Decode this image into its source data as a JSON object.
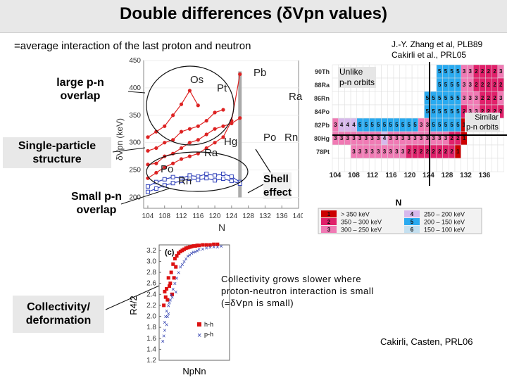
{
  "slide": {
    "title": "Double differences (δVpn values)",
    "subtitle": "=average interaction of the last proton and neutron",
    "refs": {
      "line1": "J.-Y. Zhang et al, PLB89",
      "line2": "Cakirli et al., PRL05",
      "bottom": "Cakirli, Casten, PRL06"
    },
    "labels": {
      "large_overlap_1": "large p-n",
      "large_overlap_2": "overlap",
      "single_particle_1": "Single-particle",
      "single_particle_2": "structure",
      "small_overlap_1": "Small p-n",
      "small_overlap_2": "overlap",
      "collectivity_1": "Collectivity/",
      "collectivity_2": "deformation",
      "unlike_1": "Unlike",
      "unlike_2": "p-n orbits",
      "similar_1": "Similar",
      "similar_2": "p-n orbits",
      "shell_1": "Shell",
      "shell_2": "effect",
      "coll_text_1": "Collectivity grows slower where",
      "coll_text_2": "proton-neutron interaction is small",
      "coll_text_3": "(=δVpn is small)"
    }
  },
  "chart_data": [
    {
      "type": "line",
      "title": "",
      "xlabel": "N",
      "ylabel": "δVpn (keV)",
      "xlim": [
        103,
        140
      ],
      "ylim": [
        180,
        450
      ],
      "x_ticks": [
        104,
        108,
        112,
        116,
        120,
        124,
        128,
        132,
        136,
        140
      ],
      "y_ticks": [
        200,
        250,
        300,
        350,
        400,
        450
      ],
      "series": [
        {
          "name": "Os",
          "color": "#dd2222",
          "points": [
            [
              104,
              310
            ],
            [
              106,
              320
            ],
            [
              108,
              330
            ],
            [
              110,
              350
            ],
            [
              112,
              370
            ],
            [
              114,
              395
            ],
            [
              116,
              368
            ]
          ]
        },
        {
          "name": "Pt",
          "color": "#dd2222",
          "points": [
            [
              104,
              285
            ],
            [
              106,
              290
            ],
            [
              108,
              300
            ],
            [
              110,
              305
            ],
            [
              112,
              320
            ],
            [
              114,
              325
            ],
            [
              116,
              330
            ],
            [
              118,
              340
            ],
            [
              120,
              355
            ],
            [
              122,
              360
            ]
          ]
        },
        {
          "name": "Hg",
          "color": "#dd2222",
          "points": [
            [
              104,
              260
            ],
            [
              106,
              262
            ],
            [
              108,
              275
            ],
            [
              110,
              280
            ],
            [
              112,
              290
            ],
            [
              114,
              300
            ],
            [
              116,
              305
            ],
            [
              118,
              315
            ],
            [
              120,
              325
            ],
            [
              122,
              330
            ],
            [
              124,
              335
            ],
            [
              126,
              345
            ]
          ]
        },
        {
          "name": "Pb",
          "color": "#dd2222",
          "points": [
            [
              104,
              235
            ],
            [
              106,
              245
            ],
            [
              108,
              255
            ],
            [
              110,
              262
            ],
            [
              112,
              270
            ],
            [
              114,
              275
            ],
            [
              116,
              280
            ],
            [
              118,
              290
            ],
            [
              120,
              300
            ],
            [
              122,
              310
            ],
            [
              124,
              340
            ],
            [
              126,
              425
            ]
          ]
        },
        {
          "name": "Po",
          "color": "#3344bb",
          "points": [
            [
              104,
              220
            ],
            [
              106,
              228
            ],
            [
              108,
              233
            ],
            [
              110,
              237
            ],
            [
              112,
              235
            ],
            [
              114,
              240
            ],
            [
              116,
              238
            ],
            [
              118,
              243
            ],
            [
              120,
              240
            ],
            [
              122,
              243
            ],
            [
              124,
              238
            ],
            [
              126,
              228
            ]
          ]
        },
        {
          "name": "Rn",
          "color": "#3344bb",
          "points": [
            [
              104,
              210
            ],
            [
              106,
              216
            ],
            [
              108,
              222
            ],
            [
              110,
              226
            ],
            [
              112,
              230
            ],
            [
              114,
              234
            ],
            [
              116,
              232
            ],
            [
              118,
              235
            ],
            [
              120,
              231
            ],
            [
              122,
              234
            ],
            [
              124,
              230
            ],
            [
              126,
              225
            ]
          ]
        }
      ],
      "element_labels": [
        "Os",
        "Pt",
        "Pb",
        "Ra",
        "Hg",
        "Po",
        "Rn",
        "Ra",
        "Rn",
        "Po"
      ]
    },
    {
      "type": "heatmap",
      "title": "",
      "xlabel": "N",
      "x_ticks": [
        104,
        108,
        112,
        116,
        120,
        124,
        128,
        132,
        136
      ],
      "rows": [
        {
          "label": "90Th",
          "values": [
            null,
            null,
            null,
            null,
            null,
            null,
            null,
            null,
            null,
            null,
            null,
            null,
            null,
            null,
            null,
            null,
            null,
            5,
            5,
            5,
            5,
            3,
            3,
            2,
            2,
            2,
            2,
            3
          ]
        },
        {
          "label": "88Ra",
          "values": [
            null,
            null,
            null,
            null,
            null,
            null,
            null,
            null,
            null,
            null,
            null,
            null,
            null,
            null,
            null,
            null,
            null,
            5,
            5,
            5,
            5,
            3,
            3,
            2,
            2,
            2,
            2,
            2
          ]
        },
        {
          "label": "86Rn",
          "values": [
            null,
            null,
            null,
            null,
            null,
            null,
            null,
            null,
            null,
            null,
            null,
            null,
            null,
            null,
            null,
            5,
            5,
            5,
            5,
            5,
            5,
            3,
            3,
            3,
            2,
            2,
            2,
            3
          ]
        },
        {
          "label": "84Po",
          "values": [
            null,
            null,
            null,
            null,
            null,
            null,
            null,
            null,
            null,
            null,
            null,
            null,
            null,
            null,
            null,
            5,
            5,
            5,
            5,
            5,
            5,
            2,
            3,
            3,
            2,
            2,
            2,
            2
          ]
        },
        {
          "label": "82Pb",
          "values": [
            3,
            4,
            4,
            4,
            5,
            5,
            5,
            5,
            5,
            5,
            5,
            5,
            5,
            5,
            3,
            3,
            5,
            5,
            5,
            5,
            5,
            1,
            3,
            null,
            null,
            null,
            null,
            null
          ]
        },
        {
          "label": "80Hg",
          "values": [
            3,
            3,
            3,
            3,
            3,
            3,
            3,
            3,
            4,
            3,
            3,
            3,
            3,
            3,
            3,
            3,
            3,
            3,
            3,
            2,
            2,
            1,
            null,
            null,
            null,
            null,
            null,
            null
          ]
        },
        {
          "label": "78Pt",
          "values": [
            null,
            null,
            null,
            3,
            3,
            3,
            3,
            3,
            3,
            3,
            3,
            3,
            2,
            2,
            2,
            2,
            2,
            2,
            2,
            2,
            1,
            null,
            null,
            null,
            null,
            null,
            null,
            null
          ]
        },
        {
          "label": "",
          "values": [
            null,
            null,
            null,
            null,
            null,
            null,
            null,
            null,
            null,
            null,
            null,
            null,
            null,
            null,
            null,
            null,
            null,
            null,
            null,
            null,
            null,
            null,
            null,
            null,
            null,
            null,
            null,
            null
          ]
        }
      ],
      "legend": [
        {
          "key": "1",
          "range": "> 350 keV",
          "color": "#cc0000"
        },
        {
          "key": "2",
          "range": "350 – 300 keV",
          "color": "#e0206a"
        },
        {
          "key": "3",
          "range": "300 – 250 keV",
          "color": "#f07ab4"
        },
        {
          "key": "4",
          "range": "250 – 200 keV",
          "color": "#d7b8ec"
        },
        {
          "key": "5",
          "range": "200 – 150 keV",
          "color": "#29aaf0"
        },
        {
          "key": "6",
          "range": "150 – 100 keV",
          "color": "#c4e0f0"
        }
      ]
    },
    {
      "type": "scatter",
      "title": "(c)",
      "xlabel": "NpNn",
      "ylabel": "R4/2",
      "ylim": [
        1.2,
        3.3
      ],
      "y_ticks": [
        1.2,
        1.4,
        1.6,
        1.8,
        2.0,
        2.2,
        2.4,
        2.6,
        2.8,
        3.0,
        3.2
      ],
      "series": [
        {
          "name": "h-h",
          "marker": "square",
          "color": "#dd1111",
          "points": [
            [
              2,
              2.2
            ],
            [
              4,
              2.35
            ],
            [
              5,
              2.5
            ],
            [
              7,
              2.7
            ],
            [
              8,
              2.55
            ],
            [
              10,
              2.8
            ],
            [
              12,
              2.95
            ],
            [
              14,
              3.05
            ],
            [
              16,
              3.1
            ],
            [
              18,
              3.15
            ],
            [
              20,
              3.18
            ],
            [
              22,
              3.2
            ],
            [
              24,
              3.22
            ],
            [
              26,
              3.24
            ],
            [
              28,
              3.25
            ],
            [
              30,
              3.26
            ],
            [
              32,
              3.27
            ],
            [
              34,
              3.28
            ],
            [
              36,
              3.28
            ],
            [
              38,
              3.29
            ],
            [
              40,
              3.29
            ],
            [
              44,
              3.3
            ],
            [
              48,
              3.3
            ],
            [
              52,
              3.3
            ],
            [
              56,
              3.31
            ],
            [
              60,
              3.31
            ],
            [
              6,
              2.3
            ],
            [
              9,
              2.6
            ],
            [
              11,
              2.4
            ],
            [
              13,
              2.7
            ],
            [
              3,
              2.45
            ],
            [
              15,
              2.9
            ]
          ]
        },
        {
          "name": "p-h",
          "marker": "x",
          "color": "#2233aa",
          "points": [
            [
              1,
              1.55
            ],
            [
              2,
              1.65
            ],
            [
              3,
              1.75
            ],
            [
              4,
              2.0
            ],
            [
              5,
              2.1
            ],
            [
              6,
              2.0
            ],
            [
              7,
              2.2
            ],
            [
              8,
              2.25
            ],
            [
              9,
              2.3
            ],
            [
              10,
              2.4
            ],
            [
              12,
              2.5
            ],
            [
              14,
              2.6
            ],
            [
              16,
              2.7
            ],
            [
              18,
              2.8
            ],
            [
              20,
              2.9
            ],
            [
              22,
              2.95
            ],
            [
              24,
              3.0
            ],
            [
              26,
              3.05
            ],
            [
              28,
              3.1
            ],
            [
              30,
              3.12
            ],
            [
              32,
              3.15
            ],
            [
              34,
              3.17
            ],
            [
              36,
              3.18
            ],
            [
              38,
              3.2
            ],
            [
              40,
              3.22
            ],
            [
              44,
              3.23
            ],
            [
              48,
              3.25
            ],
            [
              52,
              3.26
            ],
            [
              56,
              3.27
            ],
            [
              60,
              3.27
            ],
            [
              64,
              3.28
            ],
            [
              3,
              1.9
            ],
            [
              5,
              1.85
            ],
            [
              7,
              2.05
            ],
            [
              11,
              2.35
            ],
            [
              15,
              2.45
            ]
          ]
        }
      ]
    }
  ]
}
